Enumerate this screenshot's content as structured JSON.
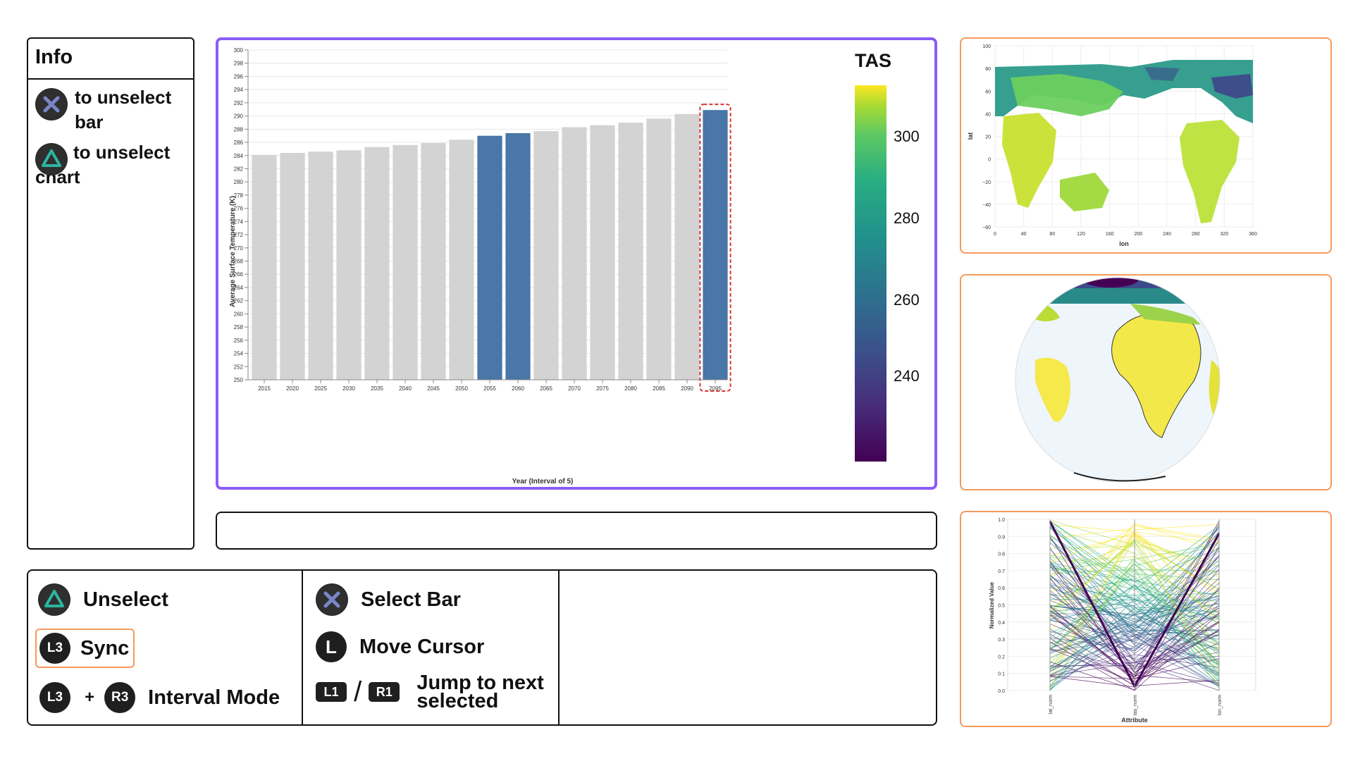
{
  "info": {
    "title": "Info",
    "unselect_bar_text": "to unselect bar",
    "unselect_chart_text": "to unselect chart"
  },
  "controls": {
    "unselect": "Unselect",
    "l3": "L3",
    "sync": "Sync",
    "r3": "R3",
    "plus": "+",
    "interval_mode": "Interval Mode",
    "select_bar": "Select Bar",
    "l_stick": "L",
    "move_cursor": "Move Cursor",
    "l1": "L1",
    "r1": "R1",
    "slash": "/",
    "jump_line1": "Jump to next",
    "jump_line2": "selected"
  },
  "colors": {
    "bar_default": "#d3d3d3",
    "bar_selected": "#4a76a8",
    "focus_outline": "#d93636",
    "active_panel_border": "#8b5cf6",
    "side_panel_border": "#f59a5c"
  },
  "chart_data": {
    "type": "bar",
    "categories": [
      "2015",
      "2020",
      "2025",
      "2030",
      "2035",
      "2040",
      "2045",
      "2050",
      "2055",
      "2060",
      "2065",
      "2070",
      "2075",
      "2080",
      "2085",
      "2090",
      "2095"
    ],
    "values": [
      284.1,
      284.4,
      284.6,
      284.8,
      285.3,
      285.6,
      285.9,
      286.4,
      287.0,
      287.4,
      287.7,
      288.3,
      288.6,
      289.0,
      289.6,
      290.3,
      290.9
    ],
    "selected": [
      "2055",
      "2060",
      "2095"
    ],
    "focused": "2095",
    "xlabel": "Year (Interval of 5)",
    "ylabel": "Average Surface Temperature (K)",
    "ylim": [
      250,
      300
    ],
    "yticks": [
      250,
      252,
      254,
      256,
      258,
      260,
      262,
      264,
      266,
      268,
      270,
      272,
      274,
      276,
      278,
      280,
      282,
      284,
      286,
      288,
      290,
      292,
      294,
      296,
      298,
      300
    ],
    "grid": true,
    "legend": {
      "title": "TAS",
      "ticks": [
        "300",
        "280",
        "260",
        "240"
      ],
      "colormap": "viridis",
      "placement": "right"
    }
  },
  "map_chart": {
    "type": "scatter",
    "xlabel": "lon",
    "ylabel": "lat",
    "xticks": [
      "0",
      "40",
      "80",
      "120",
      "160",
      "200",
      "240",
      "280",
      "320",
      "360"
    ],
    "yticks": [
      "100",
      "80",
      "60",
      "40",
      "20",
      "0",
      "−20",
      "−40",
      "−60"
    ]
  },
  "pcp_chart": {
    "type": "line",
    "xlabel": "Attribute",
    "ylabel": "Normalized Value",
    "axes": [
      "lat_norm",
      "tas_norm",
      "lon_norm"
    ],
    "yticks": [
      "1.0",
      "0.9",
      "0.8",
      "0.7",
      "0.6",
      "0.5",
      "0.4",
      "0.3",
      "0.2",
      "0.1",
      "0.0"
    ]
  }
}
